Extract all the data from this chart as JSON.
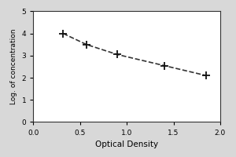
{
  "x": [
    0.32,
    0.57,
    0.9,
    1.4,
    1.85
  ],
  "y": [
    4.0,
    3.5,
    3.05,
    2.55,
    2.1
  ],
  "xlabel": "Optical Density",
  "ylabel": "Log. of concentration",
  "xlim": [
    0,
    2
  ],
  "ylim": [
    0,
    5
  ],
  "xticks": [
    0,
    0.5,
    1,
    1.5,
    2
  ],
  "yticks": [
    0,
    1,
    2,
    3,
    4,
    5
  ],
  "line_color": "#333333",
  "marker_style": "+",
  "marker_size": 7,
  "marker_color": "#111111",
  "line_style": "--",
  "line_width": 1.2,
  "plot_bg_color": "#ffffff",
  "fig_bg_color": "#d8d8d8",
  "xlabel_fontsize": 7.5,
  "ylabel_fontsize": 6.5,
  "tick_fontsize": 6.5,
  "marker_edge_width": 1.3
}
